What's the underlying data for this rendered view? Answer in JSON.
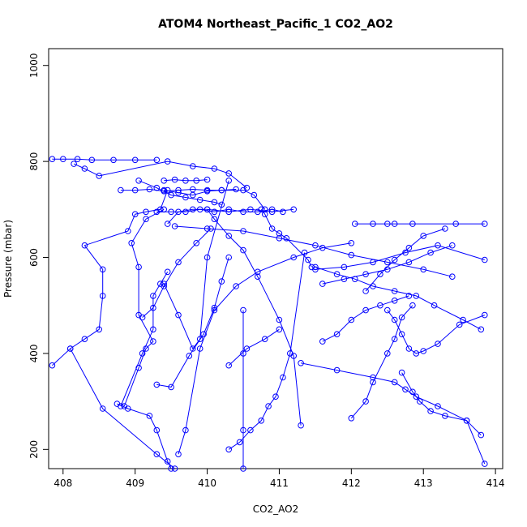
{
  "chart_data": {
    "type": "scatter",
    "title": "ATOM4 Northeast_Pacific_1 CO2_AO2",
    "xlabel": "CO2_AO2",
    "ylabel": "Pressure (mbar)",
    "xlim": [
      407.8,
      414.1
    ],
    "ylim": [
      1035,
      160
    ],
    "x_ticks": [
      408,
      409,
      410,
      411,
      412,
      413,
      414
    ],
    "y_ticks": [
      200,
      400,
      600,
      800,
      1000
    ],
    "y_reversed": true,
    "grid": false,
    "series_color": "#0000ff",
    "series": [
      {
        "x": [
          409.6,
          409.7,
          409.9,
          410.1,
          410.4,
          410.7,
          411.2,
          411.6,
          412.0
        ],
        "y": [
          190,
          240,
          410,
          490,
          540,
          570,
          600,
          620,
          630
        ]
      },
      {
        "x": [
          407.85,
          408.1,
          408.55,
          409.3,
          409.55
        ],
        "y": [
          375,
          410,
          285,
          190,
          160
        ]
      },
      {
        "x": [
          408.1,
          408.3,
          408.5,
          408.55,
          408.55,
          408.3,
          408.9,
          409.0,
          409.15,
          409.35,
          409.45
        ],
        "y": [
          410,
          430,
          450,
          520,
          575,
          625,
          655,
          690,
          695,
          700,
          740
        ]
      },
      {
        "x": [
          408.75,
          408.9,
          409.2,
          409.3,
          409.45,
          409.5
        ],
        "y": [
          295,
          285,
          270,
          240,
          175,
          160
        ]
      },
      {
        "x": [
          408.85,
          409.05,
          409.15,
          409.25,
          409.05,
          409.05,
          408.95,
          409.15,
          409.4
        ],
        "y": [
          290,
          370,
          410,
          425,
          480,
          580,
          630,
          680,
          700
        ]
      },
      {
        "x": [
          408.8,
          409.1,
          409.25,
          409.25,
          409.35,
          409.45
        ],
        "y": [
          290,
          400,
          450,
          520,
          545,
          570
        ]
      },
      {
        "x": [
          409.3,
          409.5,
          409.75,
          409.95,
          410.1,
          410.2,
          410.3
        ],
        "y": [
          335,
          330,
          395,
          440,
          495,
          550,
          600
        ]
      },
      {
        "x": [
          409.1,
          409.25,
          409.4,
          409.6,
          409.85,
          410.05
        ],
        "y": [
          475,
          495,
          540,
          590,
          630,
          660
        ]
      },
      {
        "x": [
          409.4,
          409.6,
          409.8,
          409.9,
          410.0,
          410.3
        ],
        "y": [
          545,
          480,
          410,
          430,
          600,
          760
        ]
      },
      {
        "x": [
          410.3,
          410.55,
          410.8,
          411.0
        ],
        "y": [
          375,
          410,
          430,
          450
        ]
      },
      {
        "x": [
          410.5,
          410.5,
          410.5,
          410.5
        ],
        "y": [
          160,
          240,
          400,
          490
        ]
      },
      {
        "x": [
          410.3,
          410.45,
          410.6,
          410.75,
          410.85,
          410.95,
          411.05,
          411.15,
          411.35
        ],
        "y": [
          200,
          215,
          240,
          260,
          290,
          310,
          350,
          400,
          610
        ]
      },
      {
        "x": [
          410.0,
          410.1,
          410.3,
          410.5,
          410.7,
          411.0,
          411.2,
          411.3
        ],
        "y": [
          700,
          680,
          645,
          615,
          560,
          470,
          395,
          250
        ]
      },
      {
        "x": [
          410.75,
          410.8,
          410.9,
          411.0,
          411.1,
          411.4,
          411.45
        ],
        "y": [
          700,
          690,
          660,
          650,
          640,
          595,
          580
        ]
      },
      {
        "x": [
          409.55,
          410.0,
          410.5,
          411.0,
          411.5,
          412.0,
          412.5,
          413.0,
          413.4
        ],
        "y": [
          665,
          660,
          655,
          640,
          625,
          605,
          590,
          575,
          560
        ]
      },
      {
        "x": [
          411.3,
          411.8,
          412.3,
          412.6,
          412.75,
          412.9,
          413.2,
          413.6,
          413.85
        ],
        "y": [
          380,
          365,
          350,
          340,
          325,
          310,
          290,
          260,
          170
        ]
      },
      {
        "x": [
          412.0,
          412.2,
          412.3,
          412.5,
          412.6,
          412.7,
          412.85
        ],
        "y": [
          265,
          300,
          340,
          400,
          430,
          475,
          500
        ]
      },
      {
        "x": [
          412.7,
          412.85,
          412.95,
          413.1,
          413.3,
          413.6,
          413.8
        ],
        "y": [
          360,
          320,
          300,
          280,
          270,
          260,
          230
        ]
      },
      {
        "x": [
          412.5,
          412.6,
          412.7,
          412.8,
          412.9,
          413.0,
          413.2,
          413.5,
          413.85
        ],
        "y": [
          490,
          470,
          440,
          410,
          400,
          405,
          420,
          460,
          480
        ]
      },
      {
        "x": [
          411.6,
          411.8,
          412.0,
          412.2,
          412.4,
          412.6,
          412.8
        ],
        "y": [
          425,
          440,
          470,
          490,
          500,
          510,
          520
        ]
      },
      {
        "x": [
          411.5,
          411.8,
          412.05,
          412.3,
          412.6,
          412.9,
          413.15,
          413.55,
          413.8
        ],
        "y": [
          580,
          565,
          555,
          540,
          530,
          520,
          500,
          470,
          450
        ]
      },
      {
        "x": [
          411.6,
          411.9,
          412.2,
          412.5,
          412.8,
          413.1,
          413.4
        ],
        "y": [
          545,
          555,
          565,
          575,
          590,
          610,
          625
        ]
      },
      {
        "x": [
          412.2,
          412.4,
          412.6,
          412.8,
          413.0,
          413.3
        ],
        "y": [
          530,
          565,
          595,
          620,
          645,
          660
        ]
      },
      {
        "x": [
          411.5,
          411.9,
          412.3,
          412.75,
          413.2,
          413.85
        ],
        "y": [
          575,
          580,
          590,
          610,
          625,
          595
        ]
      },
      {
        "x": [
          412.05,
          412.3,
          412.5,
          412.6,
          412.85,
          413.45,
          413.85
        ],
        "y": [
          670,
          670,
          670,
          670,
          670,
          670,
          670
        ]
      },
      {
        "x": [
          409.45,
          409.6,
          409.8,
          410.0,
          410.3,
          410.6,
          410.9,
          411.2
        ],
        "y": [
          670,
          695,
          700,
          700,
          695,
          700,
          695,
          700
        ]
      },
      {
        "x": [
          409.3,
          409.5,
          409.7,
          409.9,
          410.1,
          410.3,
          410.5,
          410.7,
          410.9,
          411.05
        ],
        "y": [
          695,
          695,
          695,
          700,
          695,
          700,
          695,
          695,
          700,
          695
        ]
      },
      {
        "x": [
          408.8,
          409.0,
          409.2,
          409.4,
          409.6,
          409.8,
          410.0,
          410.2,
          410.4
        ],
        "y": [
          740,
          740,
          742,
          738,
          740,
          742,
          740,
          740,
          742
        ]
      },
      {
        "x": [
          409.4,
          409.55,
          409.7,
          409.85,
          410.0
        ],
        "y": [
          760,
          762,
          760,
          760,
          762
        ]
      },
      {
        "x": [
          409.4,
          409.6,
          409.8,
          410.0,
          410.2,
          410.5,
          410.65,
          410.8
        ],
        "y": [
          740,
          735,
          730,
          738,
          740,
          740,
          730,
          700
        ]
      },
      {
        "x": [
          407.85,
          408.0,
          408.2,
          408.4,
          408.7,
          409.0,
          409.3
        ],
        "y": [
          805,
          805,
          805,
          803,
          803,
          803,
          803
        ]
      },
      {
        "x": [
          408.15,
          408.3,
          408.5,
          409.45,
          409.8,
          410.1,
          410.3,
          410.55
        ],
        "y": [
          795,
          785,
          770,
          800,
          790,
          785,
          775,
          745
        ]
      },
      {
        "x": [
          409.05,
          409.3,
          409.5,
          409.7,
          409.9,
          410.1,
          410.2
        ],
        "y": [
          760,
          745,
          730,
          725,
          720,
          715,
          710
        ]
      }
    ]
  }
}
